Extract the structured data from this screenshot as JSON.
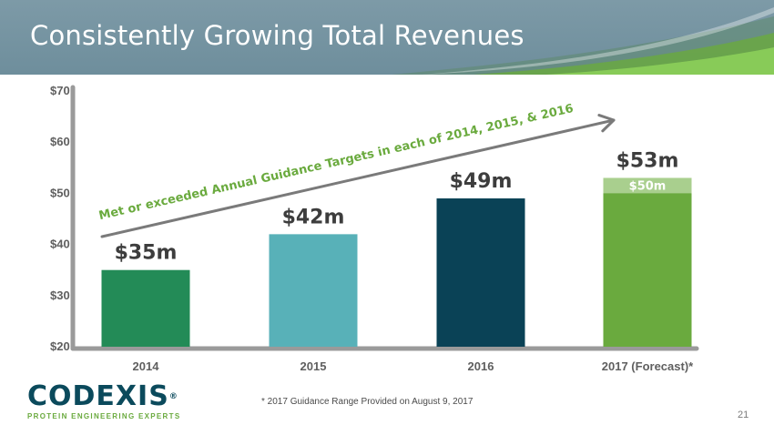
{
  "slide": {
    "title": "Consistently Growing Total Revenues",
    "footnote": "* 2017 Guidance Range Provided on August 9, 2017",
    "page_number": "21"
  },
  "logo": {
    "wordmark": "CODEXIS",
    "registered": "®",
    "tagline": "PROTEIN ENGINEERING EXPERTS"
  },
  "colors": {
    "header": "#6e8e9c",
    "bar_2014": "#238b57",
    "bar_2015": "#58b1b8",
    "bar_2016": "#0a4256",
    "bar_2017": "#6aaa3e",
    "bar_2017_range": "#a9cf8e",
    "annotation": "#6aaa3e"
  },
  "chart_data": {
    "type": "bar",
    "title": "Consistently Growing Total Revenues",
    "categories": [
      "2014",
      "2015",
      "2016",
      "2017 (Forecast)*"
    ],
    "values": [
      35,
      42,
      49,
      53
    ],
    "value_labels": [
      "$35m",
      "$42m",
      "$49m",
      "$53m"
    ],
    "range_low_2017": 50,
    "range_low_label": "$50m",
    "unit": "$ millions",
    "ylim": [
      20,
      70
    ],
    "yticks": [
      20,
      30,
      40,
      50,
      60,
      70
    ],
    "ytick_labels": [
      "$20",
      "$30",
      "$40",
      "$50",
      "$60",
      "$70"
    ],
    "annotation": "Met or exceeded Annual Guidance Targets in each of 2014, 2015, & 2016",
    "grid": false,
    "legend": "none"
  }
}
